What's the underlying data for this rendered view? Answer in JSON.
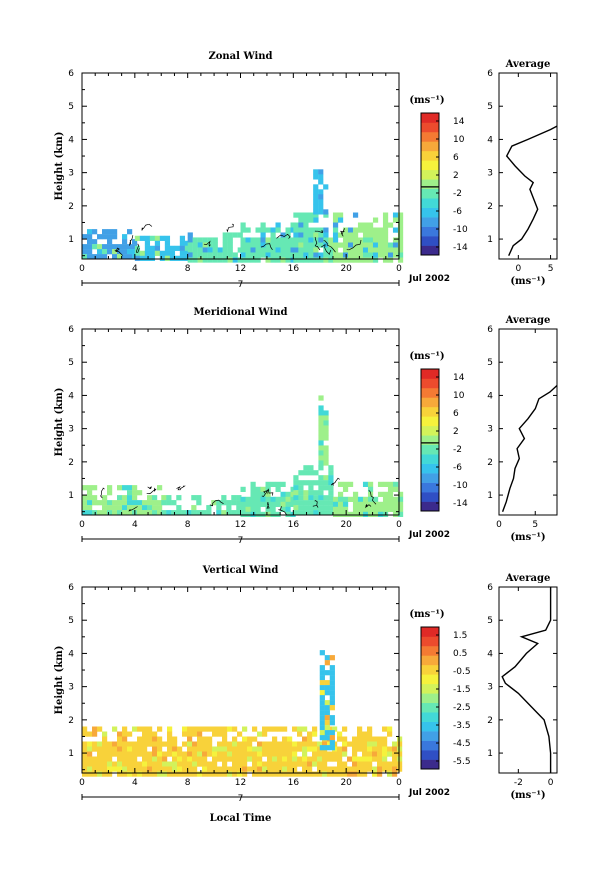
{
  "colors": {
    "colorbar": [
      "#3b2a8c",
      "#2f4fc4",
      "#3a78dd",
      "#41a0e6",
      "#36c3ec",
      "#42d9d7",
      "#66e8b4",
      "#9ef08a",
      "#d3f25a",
      "#f6f23c",
      "#f8d23a",
      "#f7a93a",
      "#f47a33",
      "#ec4b2d",
      "#e02a26"
    ]
  },
  "chart_data": [
    {
      "type": "heatmap",
      "title": "Zonal Wind",
      "ylabel": "Height (km)",
      "xlabel": "",
      "x_ticks": [
        "0",
        "4",
        "8",
        "12",
        "16",
        "20",
        "0"
      ],
      "y_ticks": [
        "1",
        "2",
        "3",
        "4",
        "5",
        "6"
      ],
      "xlim": [
        0,
        24
      ],
      "ylim": [
        0.4,
        6
      ],
      "date_label": "7",
      "month_label": "Jul 2002",
      "colorbar": {
        "unit": "(ms⁻¹)",
        "ticks": [
          "14",
          "10",
          "6",
          "2",
          "-2",
          "-6",
          "-10",
          "-14"
        ],
        "range": [
          -16,
          16
        ]
      },
      "base_colors": [
        "#36c3ec",
        "#41a0e6",
        "#66e8b4",
        "#9ef08a"
      ],
      "cells": [
        {
          "x0": 0,
          "x1": 4,
          "y0": 0.4,
          "y1": 1.3,
          "c": "#41a0e6"
        },
        {
          "x0": 4,
          "x1": 8,
          "y0": 0.4,
          "y1": 1.1,
          "c": "#36c3ec"
        },
        {
          "x0": 8,
          "x1": 12,
          "y0": 0.4,
          "y1": 1.2,
          "c": "#66e8b4"
        },
        {
          "x0": 12,
          "x1": 16,
          "y0": 0.4,
          "y1": 1.5,
          "c": "#66e8b4"
        },
        {
          "x0": 16,
          "x1": 19,
          "y0": 0.4,
          "y1": 1.8,
          "c": "#66e8b4"
        },
        {
          "x0": 17.5,
          "x1": 18.5,
          "y0": 1.8,
          "y1": 3.1,
          "c": "#36c3ec"
        },
        {
          "x0": 19,
          "x1": 24,
          "y0": 0.4,
          "y1": 1.8,
          "c": "#9ef08a"
        }
      ],
      "profile": {
        "title": "Average",
        "x_ticks": [
          "0",
          "5"
        ],
        "xlim": [
          -3,
          6
        ],
        "xlabel": "(ms⁻¹)",
        "y_ticks": [
          "1",
          "2",
          "3",
          "4",
          "5",
          "6"
        ],
        "ylim": [
          0.4,
          6
        ],
        "points": [
          [
            -1.5,
            0.5
          ],
          [
            -0.8,
            0.8
          ],
          [
            0.5,
            1.0
          ],
          [
            1.5,
            1.3
          ],
          [
            2.3,
            1.6
          ],
          [
            3.0,
            1.9
          ],
          [
            2.4,
            2.2
          ],
          [
            1.8,
            2.5
          ],
          [
            2.3,
            2.7
          ],
          [
            1.0,
            2.9
          ],
          [
            -0.5,
            3.2
          ],
          [
            -1.8,
            3.5
          ],
          [
            -1.0,
            3.8
          ],
          [
            1.5,
            4.0
          ],
          [
            5.0,
            4.3
          ],
          [
            6.0,
            4.4
          ]
        ]
      }
    },
    {
      "type": "heatmap",
      "title": "Meridional Wind",
      "ylabel": "Height (km)",
      "xlabel": "",
      "x_ticks": [
        "0",
        "4",
        "8",
        "12",
        "16",
        "20",
        "0"
      ],
      "y_ticks": [
        "1",
        "2",
        "3",
        "4",
        "5",
        "6"
      ],
      "xlim": [
        0,
        24
      ],
      "ylim": [
        0.4,
        6
      ],
      "date_label": "7",
      "month_label": "Jul 2002",
      "colorbar": {
        "unit": "(ms⁻¹)",
        "ticks": [
          "14",
          "10",
          "6",
          "2",
          "-2",
          "-6",
          "-10",
          "-14"
        ],
        "range": [
          -16,
          16
        ]
      },
      "base_colors": [
        "#66e8b4",
        "#9ef08a",
        "#42d9d7"
      ],
      "cells": [
        {
          "x0": 0,
          "x1": 6,
          "y0": 0.4,
          "y1": 1.3,
          "c": "#9ef08a"
        },
        {
          "x0": 6,
          "x1": 12,
          "y0": 0.4,
          "y1": 1.0,
          "c": "#66e8b4"
        },
        {
          "x0": 12,
          "x1": 16,
          "y0": 0.4,
          "y1": 1.4,
          "c": "#66e8b4"
        },
        {
          "x0": 16,
          "x1": 19,
          "y0": 0.4,
          "y1": 1.9,
          "c": "#66e8b4"
        },
        {
          "x0": 17.9,
          "x1": 18.5,
          "y0": 1.9,
          "y1": 4.0,
          "c": "#9ef08a"
        },
        {
          "x0": 19,
          "x1": 24,
          "y0": 0.4,
          "y1": 1.4,
          "c": "#9ef08a"
        }
      ],
      "profile": {
        "title": "Average",
        "x_ticks": [
          "0",
          "5"
        ],
        "xlim": [
          0,
          8
        ],
        "xlabel": "(ms⁻¹)",
        "y_ticks": [
          "1",
          "2",
          "3",
          "4",
          "5",
          "6"
        ],
        "ylim": [
          0.4,
          6
        ],
        "points": [
          [
            0.5,
            0.5
          ],
          [
            1.0,
            0.8
          ],
          [
            1.5,
            1.2
          ],
          [
            2.0,
            1.5
          ],
          [
            2.2,
            1.8
          ],
          [
            2.8,
            2.1
          ],
          [
            2.5,
            2.4
          ],
          [
            3.5,
            2.7
          ],
          [
            2.8,
            3.0
          ],
          [
            4.0,
            3.3
          ],
          [
            5.0,
            3.6
          ],
          [
            5.5,
            3.9
          ],
          [
            7.0,
            4.1
          ],
          [
            8.0,
            4.3
          ]
        ]
      }
    },
    {
      "type": "heatmap",
      "title": "Vertical Wind",
      "ylabel": "Height (km)",
      "xlabel": "Local Time",
      "x_ticks": [
        "0",
        "4",
        "8",
        "12",
        "16",
        "20",
        "0"
      ],
      "y_ticks": [
        "1",
        "2",
        "3",
        "4",
        "5",
        "6"
      ],
      "xlim": [
        0,
        24
      ],
      "ylim": [
        0.4,
        6
      ],
      "date_label": "7",
      "month_label": "Jul 2002",
      "colorbar": {
        "unit": "(ms⁻¹)",
        "ticks": [
          "1.5",
          "0.5",
          "-0.5",
          "-1.5",
          "-2.5",
          "-3.5",
          "-4.5",
          "-5.5"
        ],
        "range": [
          -6,
          2
        ]
      },
      "base_colors": [
        "#f8d23a",
        "#f6f23c",
        "#f7a93a",
        "#d3f25a"
      ],
      "cells": [
        {
          "x0": 0,
          "x1": 24,
          "y0": 0.4,
          "y1": 1.8,
          "c": "#f8d23a"
        },
        {
          "x0": 18,
          "x1": 18.8,
          "y0": 1.2,
          "y1": 4.1,
          "c": "#36c3ec"
        }
      ],
      "profile": {
        "title": "Average",
        "x_ticks": [
          "-2",
          "0"
        ],
        "xlim": [
          -3.2,
          0.4
        ],
        "xlabel": "(ms⁻¹)",
        "y_ticks": [
          "1",
          "2",
          "3",
          "4",
          "5",
          "6"
        ],
        "ylim": [
          0.4,
          6
        ],
        "points": [
          [
            0,
            0.4
          ],
          [
            0,
            1.0
          ],
          [
            -0.1,
            1.5
          ],
          [
            -0.4,
            2.0
          ],
          [
            -1.2,
            2.4
          ],
          [
            -2.0,
            2.8
          ],
          [
            -2.8,
            3.1
          ],
          [
            -3.0,
            3.3
          ],
          [
            -2.2,
            3.6
          ],
          [
            -1.5,
            4.0
          ],
          [
            -0.8,
            4.3
          ],
          [
            -1.8,
            4.5
          ],
          [
            -0.3,
            4.7
          ],
          [
            0,
            5.0
          ],
          [
            0,
            5.5
          ],
          [
            0,
            6.0
          ]
        ]
      }
    }
  ]
}
